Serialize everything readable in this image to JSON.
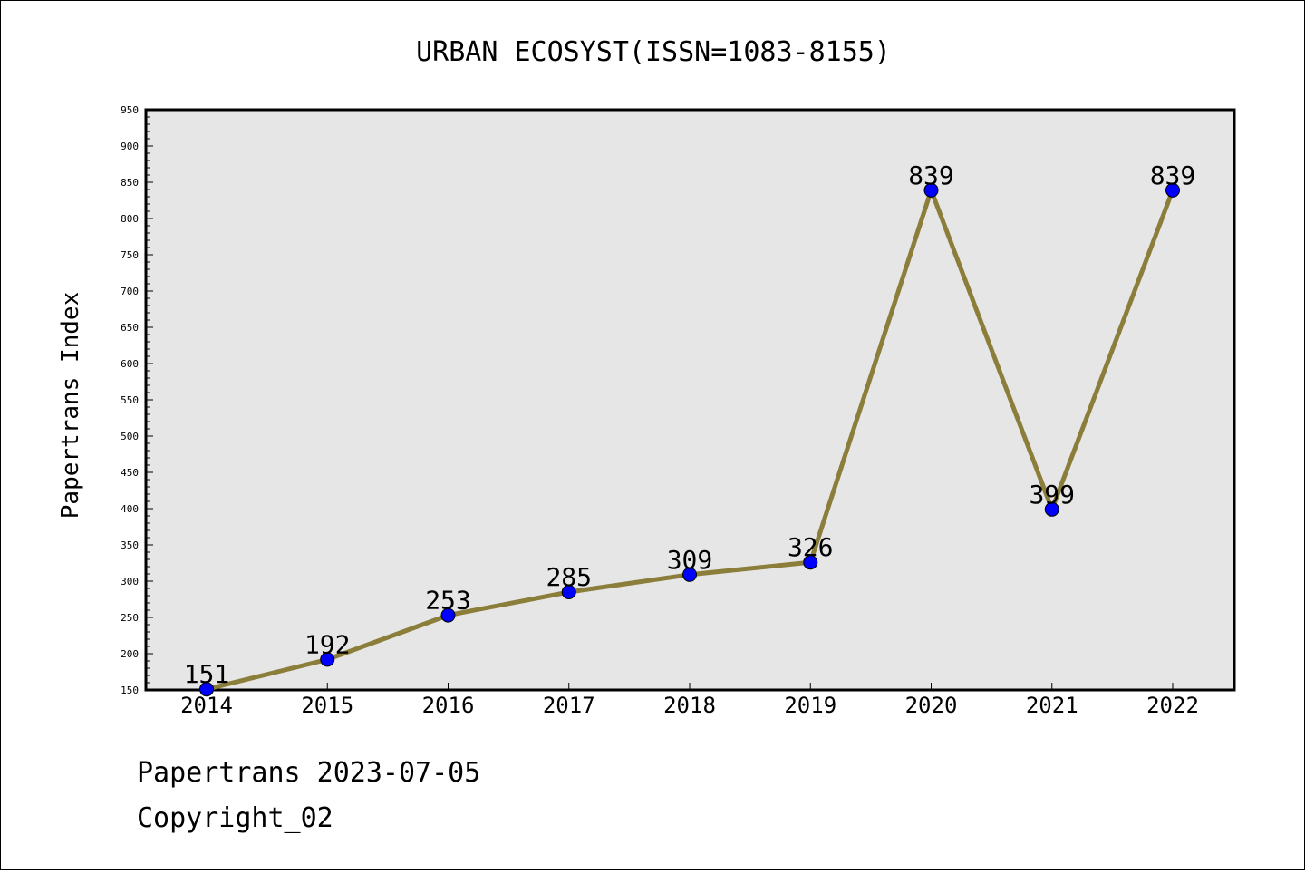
{
  "chart_data": {
    "type": "line",
    "title": "URBAN ECOSYST(ISSN=1083-8155)",
    "xlabel": "",
    "ylabel": "Papertrans Index",
    "categories": [
      "2014",
      "2015",
      "2016",
      "2017",
      "2018",
      "2019",
      "2020",
      "2021",
      "2022"
    ],
    "series": [
      {
        "values": [
          151,
          192,
          253,
          285,
          309,
          326,
          839,
          399,
          839
        ],
        "data_labels": [
          "151",
          "192",
          "253",
          "285",
          "309",
          "326",
          "839",
          "399",
          "839"
        ]
      }
    ],
    "ylim": [
      150,
      950
    ],
    "yticks": [
      "150",
      "200",
      "250",
      "300",
      "350",
      "400",
      "450",
      "500",
      "550",
      "600",
      "650",
      "700",
      "750",
      "800",
      "850",
      "900",
      "950"
    ],
    "grid": false,
    "colors": {
      "line": "#8b7d3a",
      "marker": "#0000ff",
      "plot_background": "#e6e6e6"
    }
  },
  "footer": {
    "source": "Papertrans 2023-07-05",
    "copyright": "Copyright_02"
  }
}
